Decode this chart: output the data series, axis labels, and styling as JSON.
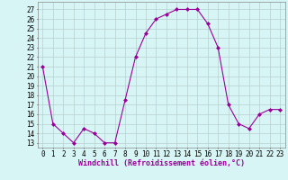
{
  "x": [
    0,
    1,
    2,
    3,
    4,
    5,
    6,
    7,
    8,
    9,
    10,
    11,
    12,
    13,
    14,
    15,
    16,
    17,
    18,
    19,
    20,
    21,
    22,
    23
  ],
  "y": [
    21,
    15,
    14,
    13,
    14.5,
    14,
    13,
    13,
    17.5,
    22,
    24.5,
    26,
    26.5,
    27,
    27,
    27,
    25.5,
    23,
    17,
    15,
    14.5,
    16,
    16.5,
    16.5
  ],
  "xlim": [
    -0.5,
    23.5
  ],
  "ylim": [
    12.5,
    27.8
  ],
  "yticks": [
    13,
    14,
    15,
    16,
    17,
    18,
    19,
    20,
    21,
    22,
    23,
    24,
    25,
    26,
    27
  ],
  "xticks": [
    0,
    1,
    2,
    3,
    4,
    5,
    6,
    7,
    8,
    9,
    10,
    11,
    12,
    13,
    14,
    15,
    16,
    17,
    18,
    19,
    20,
    21,
    22,
    23
  ],
  "xlabel": "Windchill (Refroidissement éolien,°C)",
  "line_color": "#990099",
  "marker": "D",
  "marker_size": 2,
  "bg_color": "#d8f5f5",
  "grid_color": "#b0c8c8",
  "label_fontsize": 6,
  "tick_fontsize": 5.5
}
